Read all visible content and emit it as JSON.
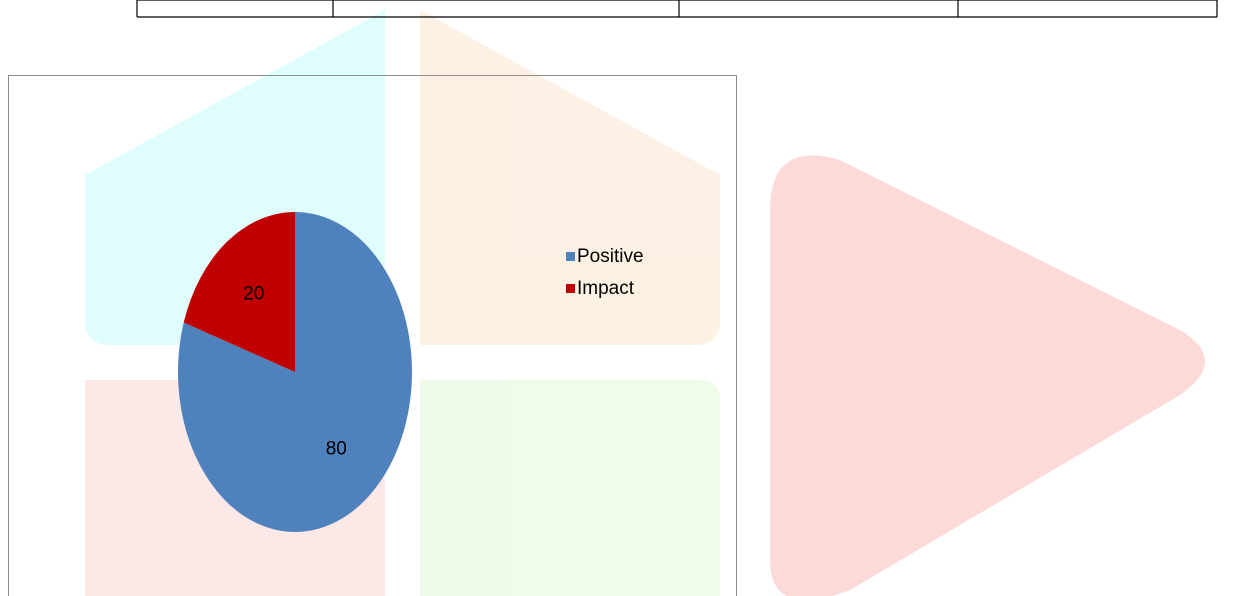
{
  "chart_data": {
    "type": "pie",
    "categories": [
      "Positive",
      "Impact"
    ],
    "values": [
      80,
      20
    ],
    "colors": [
      "#4f81bd",
      "#c00000"
    ],
    "legend": "right",
    "data_labels": true
  }
}
